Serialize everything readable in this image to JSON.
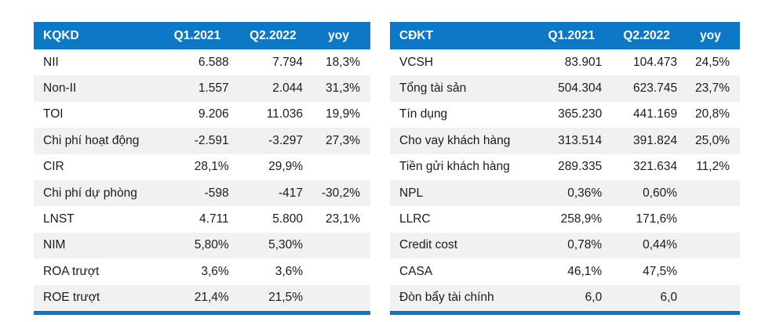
{
  "page": {
    "background": "#FFFFFF"
  },
  "colors": {
    "header_bg": "#0D78C5",
    "header_text": "#FFFFFF",
    "row_alt_bg": "#F1F1F1",
    "body_text": "#1B1B1B",
    "accent_bar": "#0D78C5"
  },
  "tables": [
    {
      "title": "KQKD",
      "columns": [
        "Q1.2021",
        "Q2.2022",
        "yoy"
      ],
      "rows": [
        {
          "label": "NII",
          "q1": "6.588",
          "q2": "7.794",
          "yoy": "18,3%"
        },
        {
          "label": "Non-II",
          "q1": "1.557",
          "q2": "2.044",
          "yoy": "31,3%"
        },
        {
          "label": "TOI",
          "q1": "9.206",
          "q2": "11.036",
          "yoy": "19,9%"
        },
        {
          "label": "Chi phí hoạt động",
          "q1": "-2.591",
          "q2": "-3.297",
          "yoy": "27,3%"
        },
        {
          "label": "CIR",
          "q1": "28,1%",
          "q2": "29,9%",
          "yoy": ""
        },
        {
          "label": "Chi phí dự phòng",
          "q1": "-598",
          "q2": "-417",
          "yoy": "-30,2%"
        },
        {
          "label": "LNST",
          "q1": "4.711",
          "q2": "5.800",
          "yoy": "23,1%"
        },
        {
          "label": "NIM",
          "q1": "5,80%",
          "q2": "5,30%",
          "yoy": ""
        },
        {
          "label": "ROA trượt",
          "q1": "3,6%",
          "q2": "3,6%",
          "yoy": ""
        },
        {
          "label": "ROE trượt",
          "q1": "21,4%",
          "q2": "21,5%",
          "yoy": ""
        }
      ]
    },
    {
      "title": "CĐKT",
      "columns": [
        "Q1.2021",
        "Q2.2022",
        "yoy"
      ],
      "rows": [
        {
          "label": "VCSH",
          "q1": "83.901",
          "q2": "104.473",
          "yoy": "24,5%"
        },
        {
          "label": "Tổng tài sản",
          "q1": "504.304",
          "q2": "623.745",
          "yoy": "23,7%"
        },
        {
          "label": "Tín dụng",
          "q1": "365.230",
          "q2": "441.169",
          "yoy": "20,8%"
        },
        {
          "label": "Cho vay khách hàng",
          "q1": "313.514",
          "q2": "391.824",
          "yoy": "25,0%"
        },
        {
          "label": "Tiền gửi khách hàng",
          "q1": "289.335",
          "q2": "321.634",
          "yoy": "11,2%"
        },
        {
          "label": "NPL",
          "q1": "0,36%",
          "q2": "0,60%",
          "yoy": ""
        },
        {
          "label": "LLRC",
          "q1": "258,9%",
          "q2": "171,6%",
          "yoy": ""
        },
        {
          "label": "Credit cost",
          "q1": "0,78%",
          "q2": "0,44%",
          "yoy": ""
        },
        {
          "label": "CASA",
          "q1": "46,1%",
          "q2": "47,5%",
          "yoy": ""
        },
        {
          "label": "Đòn bẩy tài chính",
          "q1": "6,0",
          "q2": "6,0",
          "yoy": ""
        }
      ]
    }
  ]
}
